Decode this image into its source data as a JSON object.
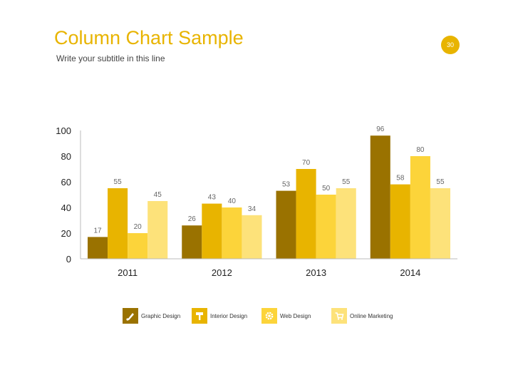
{
  "page": {
    "title": "Column Chart Sample",
    "subtitle": "Write your subtitle in this line",
    "page_number": "30"
  },
  "colors": {
    "accent": "#e8b400"
  },
  "chart_data": {
    "type": "bar",
    "categories": [
      "2011",
      "2012",
      "2013",
      "2014"
    ],
    "series": [
      {
        "name": "Graphic Design",
        "color": "#9a7200",
        "icon": "brush-icon",
        "values": [
          17,
          26,
          53,
          96
        ]
      },
      {
        "name": "Interior Design",
        "color": "#e8b400",
        "icon": "paint-roller-icon",
        "values": [
          55,
          43,
          70,
          58
        ]
      },
      {
        "name": "Web Design",
        "color": "#fcd43a",
        "icon": "gear-icon",
        "values": [
          20,
          40,
          50,
          80
        ]
      },
      {
        "name": "Online Marketing",
        "color": "#fde27a",
        "icon": "cart-icon",
        "values": [
          45,
          34,
          55,
          55
        ]
      }
    ],
    "yticks": [
      0,
      20,
      40,
      60,
      80,
      100
    ],
    "ylim": [
      0,
      100
    ],
    "grid": false,
    "legend": "bottom"
  }
}
